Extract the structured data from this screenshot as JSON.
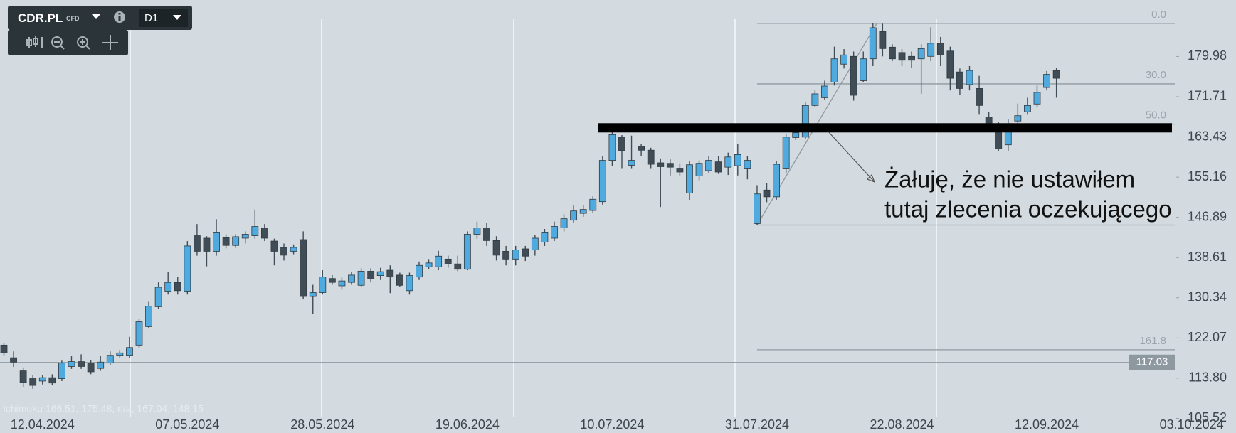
{
  "toolbar": {
    "symbol": "CDR.PL",
    "instrument_type": "CFD",
    "timeframe": "D1"
  },
  "chart_data": {
    "type": "candlestick",
    "indicator_label": "Ichimoku 166.51, 175.48, n/a, 167.04, 148.15",
    "categories": [
      null,
      null,
      null,
      null,
      "12.04.2024",
      null,
      null,
      null,
      null,
      null,
      null,
      null,
      null,
      null,
      null,
      null,
      null,
      null,
      null,
      "07.05.2024",
      null,
      null,
      null,
      null,
      null,
      null,
      null,
      null,
      null,
      null,
      null,
      null,
      null,
      "28.05.2024",
      null,
      null,
      null,
      null,
      null,
      null,
      null,
      null,
      null,
      null,
      null,
      null,
      null,
      null,
      "19.06.2024",
      null,
      null,
      null,
      null,
      null,
      null,
      null,
      null,
      null,
      null,
      null,
      null,
      null,
      null,
      "10.07.2024",
      null,
      null,
      null,
      null,
      null,
      null,
      null,
      null,
      null,
      null,
      null,
      null,
      null,
      null,
      "31.07.2024",
      null,
      null,
      null,
      null,
      null,
      null,
      null,
      null,
      null,
      null,
      null,
      null,
      null,
      null,
      "22.08.2024",
      null,
      null,
      null,
      null,
      null,
      null,
      null,
      null,
      null,
      null,
      null,
      null,
      null,
      null,
      "12.09.2024",
      null,
      null,
      null,
      null,
      null,
      null,
      null,
      null,
      null,
      null,
      null,
      null,
      null,
      null,
      "03.10.2024"
    ],
    "open": [
      120.6,
      118.0,
      115.3,
      113.7,
      113.2,
      113.9,
      113.7,
      116.2,
      117.2,
      116.9,
      115.8,
      116.9,
      118.5,
      118.5,
      120.6,
      124.4,
      128.5,
      131.7,
      133.5,
      131.7,
      143.1,
      142.6,
      139.9,
      142.7,
      141.1,
      142.6,
      143.1,
      144.7,
      142.0,
      140.7,
      139.9,
      142.3,
      130.6,
      131.4,
      134.3,
      132.8,
      133.5,
      132.9,
      135.8,
      134.9,
      136.0,
      135.0,
      131.8,
      134.6,
      136.7,
      136.7,
      138.3,
      137.3,
      136.2,
      143.4,
      144.7,
      142.1,
      139.9,
      138.3,
      140.4,
      140.2,
      141.8,
      142.6,
      144.7,
      146.3,
      147.7,
      148.3,
      150.1,
      158.6,
      163.4,
      157.6,
      161.5,
      160.7,
      158.1,
      158.0,
      157.0,
      151.9,
      155.4,
      156.5,
      158.3,
      157.2,
      157.5,
      157.0,
      145.6,
      152.5,
      151.1,
      157.0,
      163.3,
      163.4,
      169.9,
      171.5,
      174.7,
      178.4,
      180.0,
      175.0,
      179.5,
      185.1,
      181.9,
      180.8,
      180.0,
      179.5,
      180.0,
      182.7,
      181.1,
      176.8,
      174.2,
      173.4,
      167.5,
      165.9,
      161.8,
      166.7,
      168.6,
      170.2,
      173.6,
      177.1,
      null,
      null,
      null,
      null,
      null,
      null,
      null,
      null,
      null,
      null,
      null,
      null,
      null,
      null
    ],
    "high": [
      121,
      119.3,
      116,
      114.5,
      114.5,
      114.6,
      117.4,
      118.3,
      118.7,
      117.5,
      118.4,
      119.3,
      119.6,
      122.3,
      126,
      129.5,
      133.5,
      135.7,
      134.6,
      142,
      145.5,
      143,
      146.5,
      143.4,
      143.4,
      144,
      148.5,
      145.5,
      142.5,
      141.5,
      141.3,
      144,
      133,
      136,
      135,
      134.5,
      135.7,
      136.4,
      136.4,
      136.5,
      137,
      135.5,
      135.5,
      137.8,
      138.3,
      140,
      139,
      139,
      144,
      146,
      145.8,
      143,
      141,
      141,
      141,
      143.2,
      144.5,
      146,
      147.5,
      149.3,
      149.4,
      151.2,
      159.5,
      164.5,
      163.8,
      163.7,
      162,
      161.2,
      159,
      158.8,
      158,
      158.5,
      158.6,
      159.5,
      159.5,
      160.2,
      162,
      159.5,
      153.5,
      154,
      158.5,
      164,
      165,
      170.5,
      173,
      175,
      182,
      181.5,
      181,
      181,
      186.8,
      186.7,
      182.5,
      181.5,
      181,
      182.5,
      186,
      184,
      182,
      177.5,
      178,
      176,
      168.5,
      166.5,
      167,
      170.3,
      171.5,
      174,
      177,
      177.6,
      null,
      null,
      null,
      null,
      null,
      null,
      null,
      null,
      null,
      null,
      null,
      null,
      null,
      null
    ],
    "low": [
      118.5,
      116.1,
      112,
      111.6,
      112.5,
      112.3,
      113.2,
      115.7,
      115.7,
      114.6,
      115.3,
      116.4,
      118,
      118,
      120,
      124,
      128,
      131,
      131,
      131,
      139,
      136.8,
      139,
      140.5,
      140.6,
      141.5,
      142.5,
      142,
      137,
      138,
      139.3,
      130,
      127,
      131,
      133,
      132,
      133,
      132.5,
      133.5,
      134,
      131.3,
      132.5,
      131,
      134,
      136.3,
      136,
      136.5,
      135.8,
      136,
      142.5,
      141,
      138,
      137,
      137,
      137.9,
      139,
      141,
      142,
      144,
      145.8,
      147,
      147.8,
      149.5,
      157.5,
      157,
      157,
      159.5,
      157,
      149,
      155.5,
      155.5,
      150.5,
      154.5,
      156,
      155.8,
      155.6,
      155.5,
      154.7,
      145.3,
      150,
      150.5,
      156,
      162.8,
      163,
      169.5,
      171,
      174,
      177.5,
      170.9,
      174.7,
      178,
      180,
      179,
      178,
      177.6,
      172.3,
      179,
      178,
      173,
      172,
      173,
      168,
      165,
      160.5,
      160.5,
      165.8,
      168,
      169.5,
      173,
      171.5,
      null,
      null,
      null,
      null,
      null,
      null,
      null,
      null,
      null,
      null,
      null,
      null,
      null,
      null
    ],
    "close": [
      119.0,
      117.1,
      112.9,
      112.3,
      113.9,
      112.8,
      116.9,
      117.2,
      116.2,
      115.1,
      117.1,
      118.5,
      119.0,
      120.1,
      125.4,
      128.6,
      132.5,
      133.5,
      131.8,
      141.0,
      139.9,
      139.9,
      143.7,
      141.1,
      142.9,
      143.4,
      145.0,
      142.6,
      139.9,
      139.1,
      140.7,
      130.6,
      131.4,
      134.6,
      133.5,
      133.8,
      135.0,
      135.8,
      134.2,
      135.7,
      134.6,
      132.9,
      134.9,
      137.0,
      137.5,
      138.9,
      137.3,
      136.2,
      143.4,
      144.7,
      142.1,
      139.1,
      138.3,
      140.2,
      138.9,
      142.6,
      143.7,
      145.0,
      146.6,
      148.2,
      148.5,
      150.6,
      158.6,
      163.9,
      160.6,
      158.6,
      160.7,
      157.8,
      157.3,
      157.2,
      156.2,
      157.7,
      158.0,
      158.6,
      156.2,
      159.3,
      159.8,
      158.6,
      151.7,
      151.1,
      157.8,
      163.4,
      164.3,
      169.9,
      172.3,
      173.9,
      179.5,
      180.3,
      172.0,
      179.5,
      185.9,
      181.6,
      179.5,
      179.2,
      179.2,
      181.6,
      182.7,
      180.3,
      175.5,
      173.4,
      177.1,
      169.9,
      165.9,
      161.0,
      164.6,
      167.8,
      169.9,
      172.6,
      176.3,
      175.5,
      null,
      null,
      null,
      null,
      null,
      null,
      null,
      null,
      null,
      null,
      null,
      null,
      null,
      null
    ],
    "up_color": "#4eaadf",
    "down_color": "#414d56",
    "ylim": [
      105.0,
      191.6
    ],
    "yticks": [
      105.52,
      {
        "value": 113.8,
        "label": "113.80"
      },
      122.07,
      130.34,
      138.61,
      146.89,
      155.16,
      163.43,
      171.71,
      179.98
    ],
    "current_price": 117.03,
    "fib_levels": [
      {
        "label": "0.0",
        "price": 186.8
      },
      {
        "label": "30.0",
        "price": 174.35
      },
      {
        "label": "50.0",
        "price": 166.05
      },
      {
        "label": null,
        "price": 145.3
      },
      {
        "label": "161.8",
        "price": 119.65
      }
    ],
    "level_line": 165.3,
    "annotation": [
      "Żałuję, że nie ustawiłem",
      "tutaj zlecenia oczekującego"
    ]
  }
}
